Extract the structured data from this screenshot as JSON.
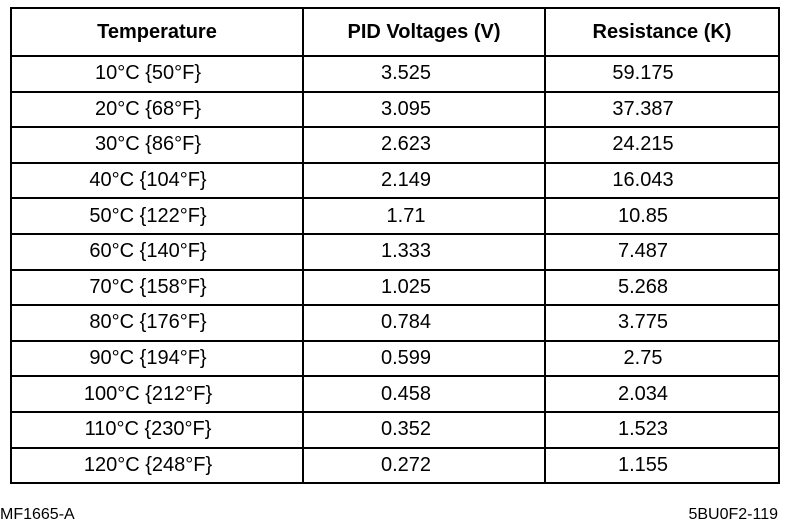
{
  "table": {
    "headers": [
      "Temperature",
      "PID Voltages (V)",
      "Resistance (K)"
    ],
    "rows": [
      {
        "temperature": "10°C {50°F}",
        "voltage": "3.525",
        "resistance": "59.175"
      },
      {
        "temperature": "20°C {68°F}",
        "voltage": "3.095",
        "resistance": "37.387"
      },
      {
        "temperature": "30°C {86°F}",
        "voltage": "2.623",
        "resistance": "24.215"
      },
      {
        "temperature": "40°C {104°F}",
        "voltage": "2.149",
        "resistance": "16.043"
      },
      {
        "temperature": "50°C {122°F}",
        "voltage": "1.71",
        "resistance": "10.85"
      },
      {
        "temperature": "60°C {140°F}",
        "voltage": "1.333",
        "resistance": "7.487"
      },
      {
        "temperature": "70°C {158°F}",
        "voltage": "1.025",
        "resistance": "5.268"
      },
      {
        "temperature": "80°C {176°F}",
        "voltage": "0.784",
        "resistance": "3.775"
      },
      {
        "temperature": "90°C {194°F}",
        "voltage": "0.599",
        "resistance": "2.75"
      },
      {
        "temperature": "100°C {212°F}",
        "voltage": "0.458",
        "resistance": "2.034"
      },
      {
        "temperature": "110°C {230°F}",
        "voltage": "0.352",
        "resistance": "1.523"
      },
      {
        "temperature": "120°C {248°F}",
        "voltage": "0.272",
        "resistance": "1.155"
      }
    ]
  },
  "footer": {
    "left_code": "MF1665-A",
    "right_code": "5BU0F2-119"
  }
}
